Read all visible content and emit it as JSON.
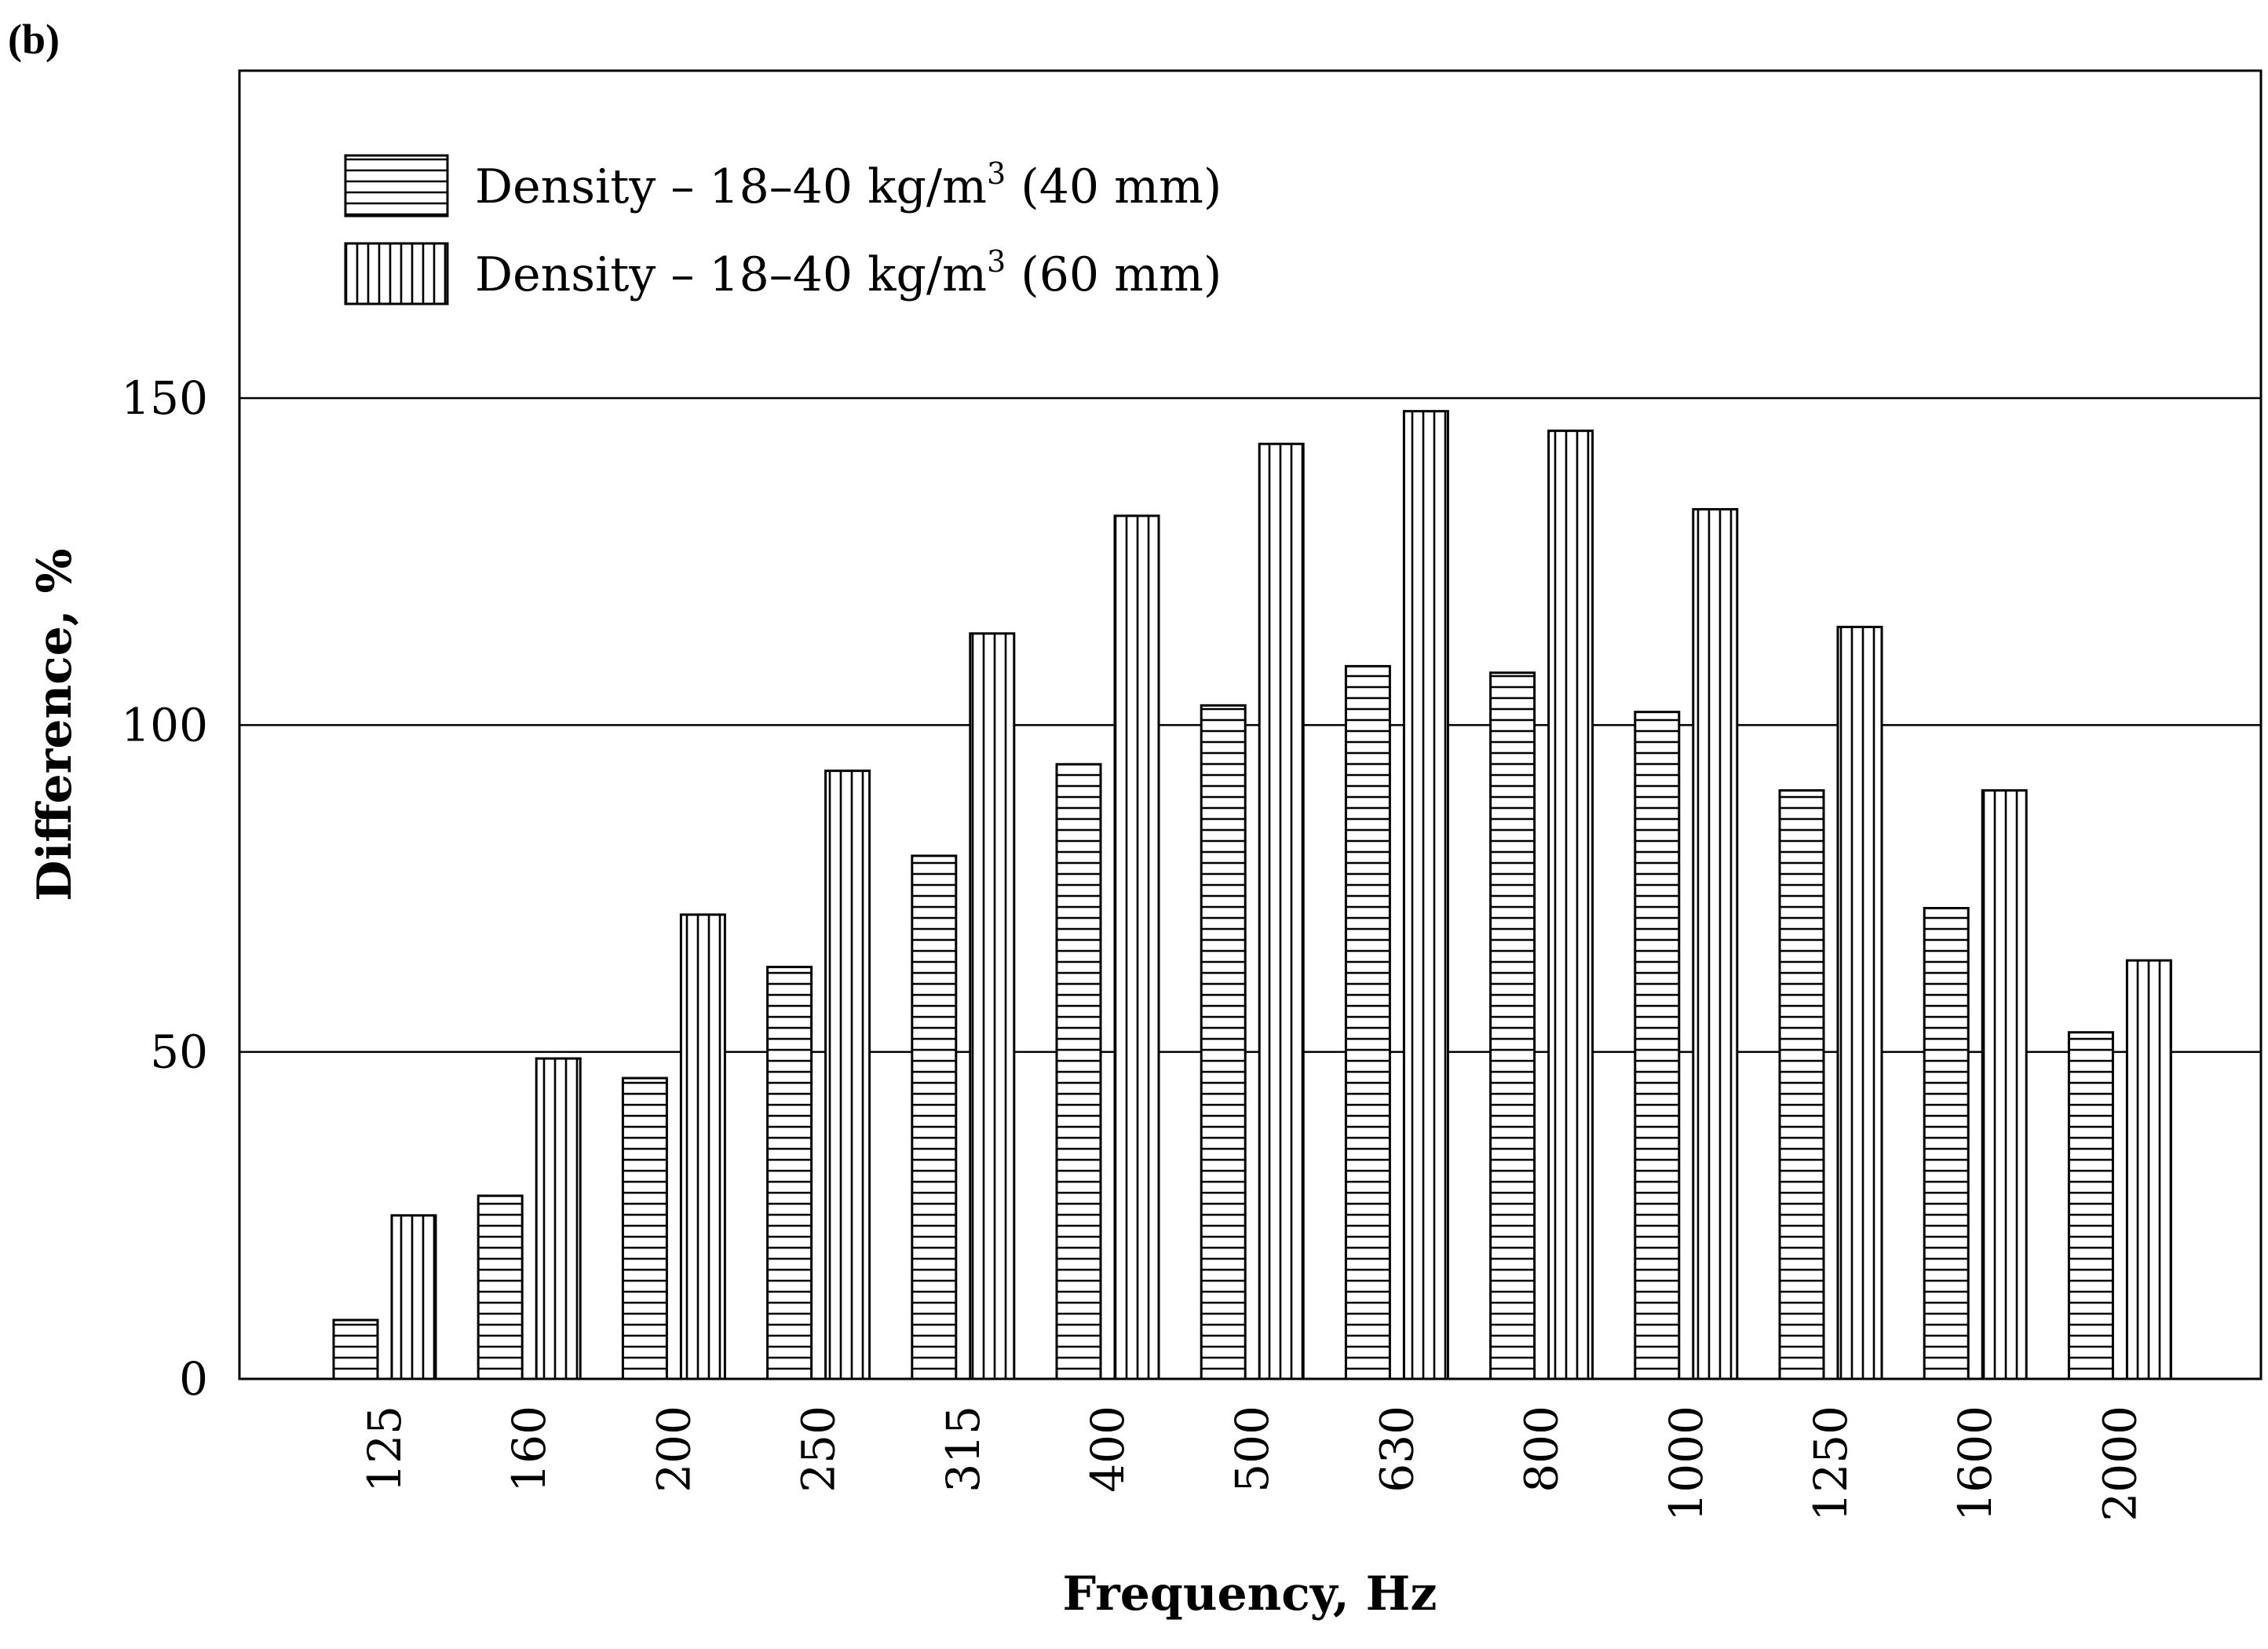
{
  "panel_label": "(b)",
  "chart_data": {
    "type": "bar",
    "title": "",
    "xlabel": "Frequency, Hz",
    "ylabel": "Difference, %",
    "ylim": [
      0,
      200
    ],
    "yticks": [
      0,
      50,
      100,
      150
    ],
    "grid": "horizontal",
    "legend_position": "top-left",
    "categories": [
      "125",
      "160",
      "200",
      "250",
      "315",
      "400",
      "500",
      "630",
      "800",
      "1000",
      "1250",
      "1600",
      "2000"
    ],
    "series": [
      {
        "name": "Density – 18–40 kg/m³ (40 mm)",
        "legend_main": "Density – 18–40 kg/m",
        "legend_sup": "3",
        "legend_tail": " (40 mm)",
        "pattern": "horizontal-lines",
        "values": [
          9,
          28,
          46,
          63,
          80,
          94,
          103,
          109,
          108,
          102,
          90,
          72,
          53
        ]
      },
      {
        "name": "Density – 18–40 kg/m³ (60 mm)",
        "legend_main": "Density – 18–40 kg/m",
        "legend_sup": "3",
        "legend_tail": " (60 mm)",
        "pattern": "vertical-lines",
        "values": [
          25,
          49,
          71,
          93,
          114,
          132,
          143,
          148,
          145,
          133,
          115,
          90,
          64
        ]
      }
    ]
  }
}
